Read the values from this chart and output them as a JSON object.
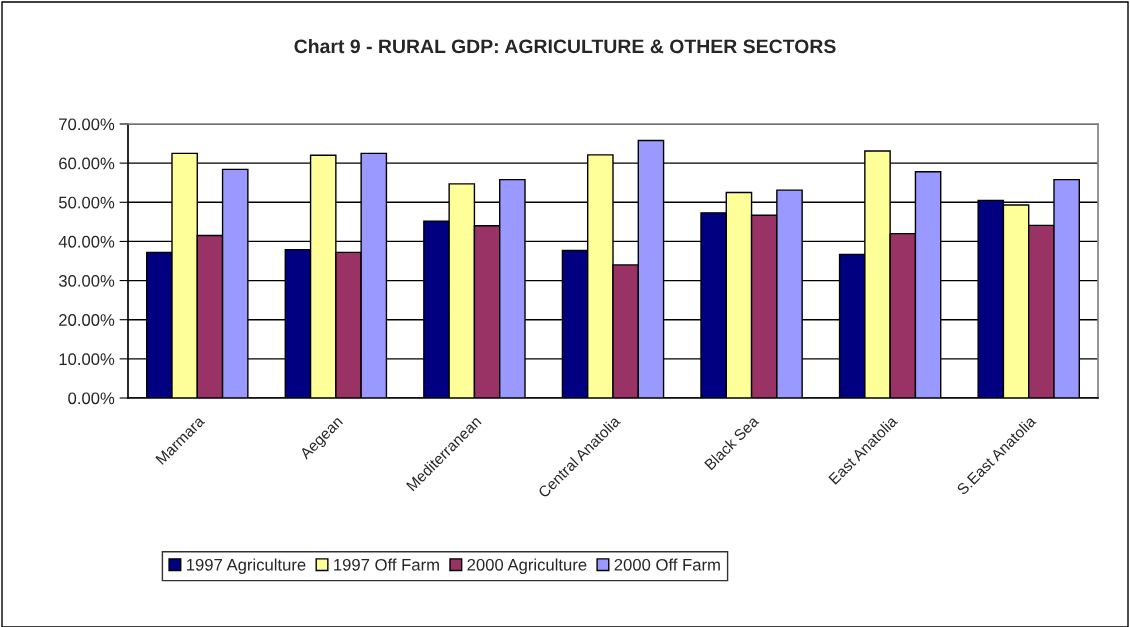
{
  "chart_data": {
    "type": "bar",
    "title": "Chart 9 - RURAL GDP: AGRICULTURE & OTHER SECTORS",
    "categories": [
      "Marmara",
      "Aegean",
      "Mediterranean",
      "Central Anatolia",
      "Black Sea",
      "East Anatolia",
      "S.East Anatolia"
    ],
    "series": [
      {
        "name": "1997 Agriculture",
        "color": "#000080",
        "values": [
          37.2,
          37.9,
          45.2,
          37.7,
          47.3,
          36.7,
          50.5
        ]
      },
      {
        "name": "1997 Off Farm",
        "color": "#ffff99",
        "values": [
          62.5,
          62.0,
          54.7,
          62.1,
          52.5,
          63.1,
          49.3
        ]
      },
      {
        "name": "2000 Agriculture",
        "color": "#993366",
        "values": [
          41.5,
          37.2,
          44.0,
          34.0,
          46.7,
          42.0,
          44.1
        ]
      },
      {
        "name": "2000 Off Farm",
        "color": "#9999ff",
        "values": [
          58.4,
          62.5,
          55.8,
          65.8,
          53.1,
          57.8,
          55.8
        ]
      }
    ],
    "ylim": [
      0,
      70
    ],
    "yticks": [
      {
        "value": 0,
        "label": "0.00%"
      },
      {
        "value": 10,
        "label": "10.00%"
      },
      {
        "value": 20,
        "label": "20.00%"
      },
      {
        "value": 30,
        "label": "30.00%"
      },
      {
        "value": 40,
        "label": "40.00%"
      },
      {
        "value": 50,
        "label": "50.00%"
      },
      {
        "value": 60,
        "label": "60.00%"
      },
      {
        "value": 70,
        "label": "70.00%"
      }
    ],
    "grid": "y",
    "legend": "bottom"
  }
}
